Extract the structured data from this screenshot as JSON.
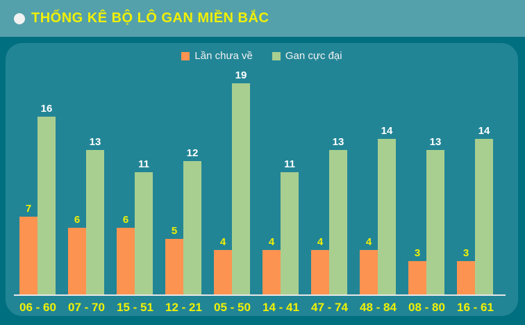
{
  "header": {
    "title": "THỐNG KÊ BỘ LÔ GAN MIỀN BẮC"
  },
  "legend": {
    "items": [
      {
        "label": "Lần chưa về",
        "color": "#fd9351"
      },
      {
        "label": "Gan cực đại",
        "color": "#a9cf90"
      }
    ]
  },
  "chart_data": {
    "type": "bar",
    "title": "THỐNG KÊ BỘ LÔ GAN MIỀN BẮC",
    "categories": [
      "06 - 60",
      "07 - 70",
      "15 - 51",
      "12 - 21",
      "05 - 50",
      "14 - 41",
      "47 - 74",
      "48 - 84",
      "08 - 80",
      "16 - 61"
    ],
    "series": [
      {
        "name": "Lần chưa về",
        "color": "#fd9351",
        "label_color": "#f0f005",
        "values": [
          7,
          6,
          6,
          5,
          4,
          4,
          4,
          4,
          3,
          3
        ]
      },
      {
        "name": "Gan cực đại",
        "color": "#a9cf90",
        "label_color": "#ffffff",
        "values": [
          16,
          13,
          11,
          12,
          19,
          11,
          13,
          14,
          13,
          14
        ]
      }
    ],
    "xlabel": "",
    "ylabel": "",
    "ylim": [
      0,
      19
    ],
    "grid": false,
    "legend_position": "top",
    "value_labels": true
  },
  "colors": {
    "header_bg": "#55a1ab",
    "outer_bg": "#007080",
    "panel_bg": "#228596",
    "title_yellow": "#f0f005",
    "bullet": "#f2f2f2",
    "baseline": "#e8e8e8",
    "orange": "#fd9351",
    "green": "#a9cf90"
  }
}
